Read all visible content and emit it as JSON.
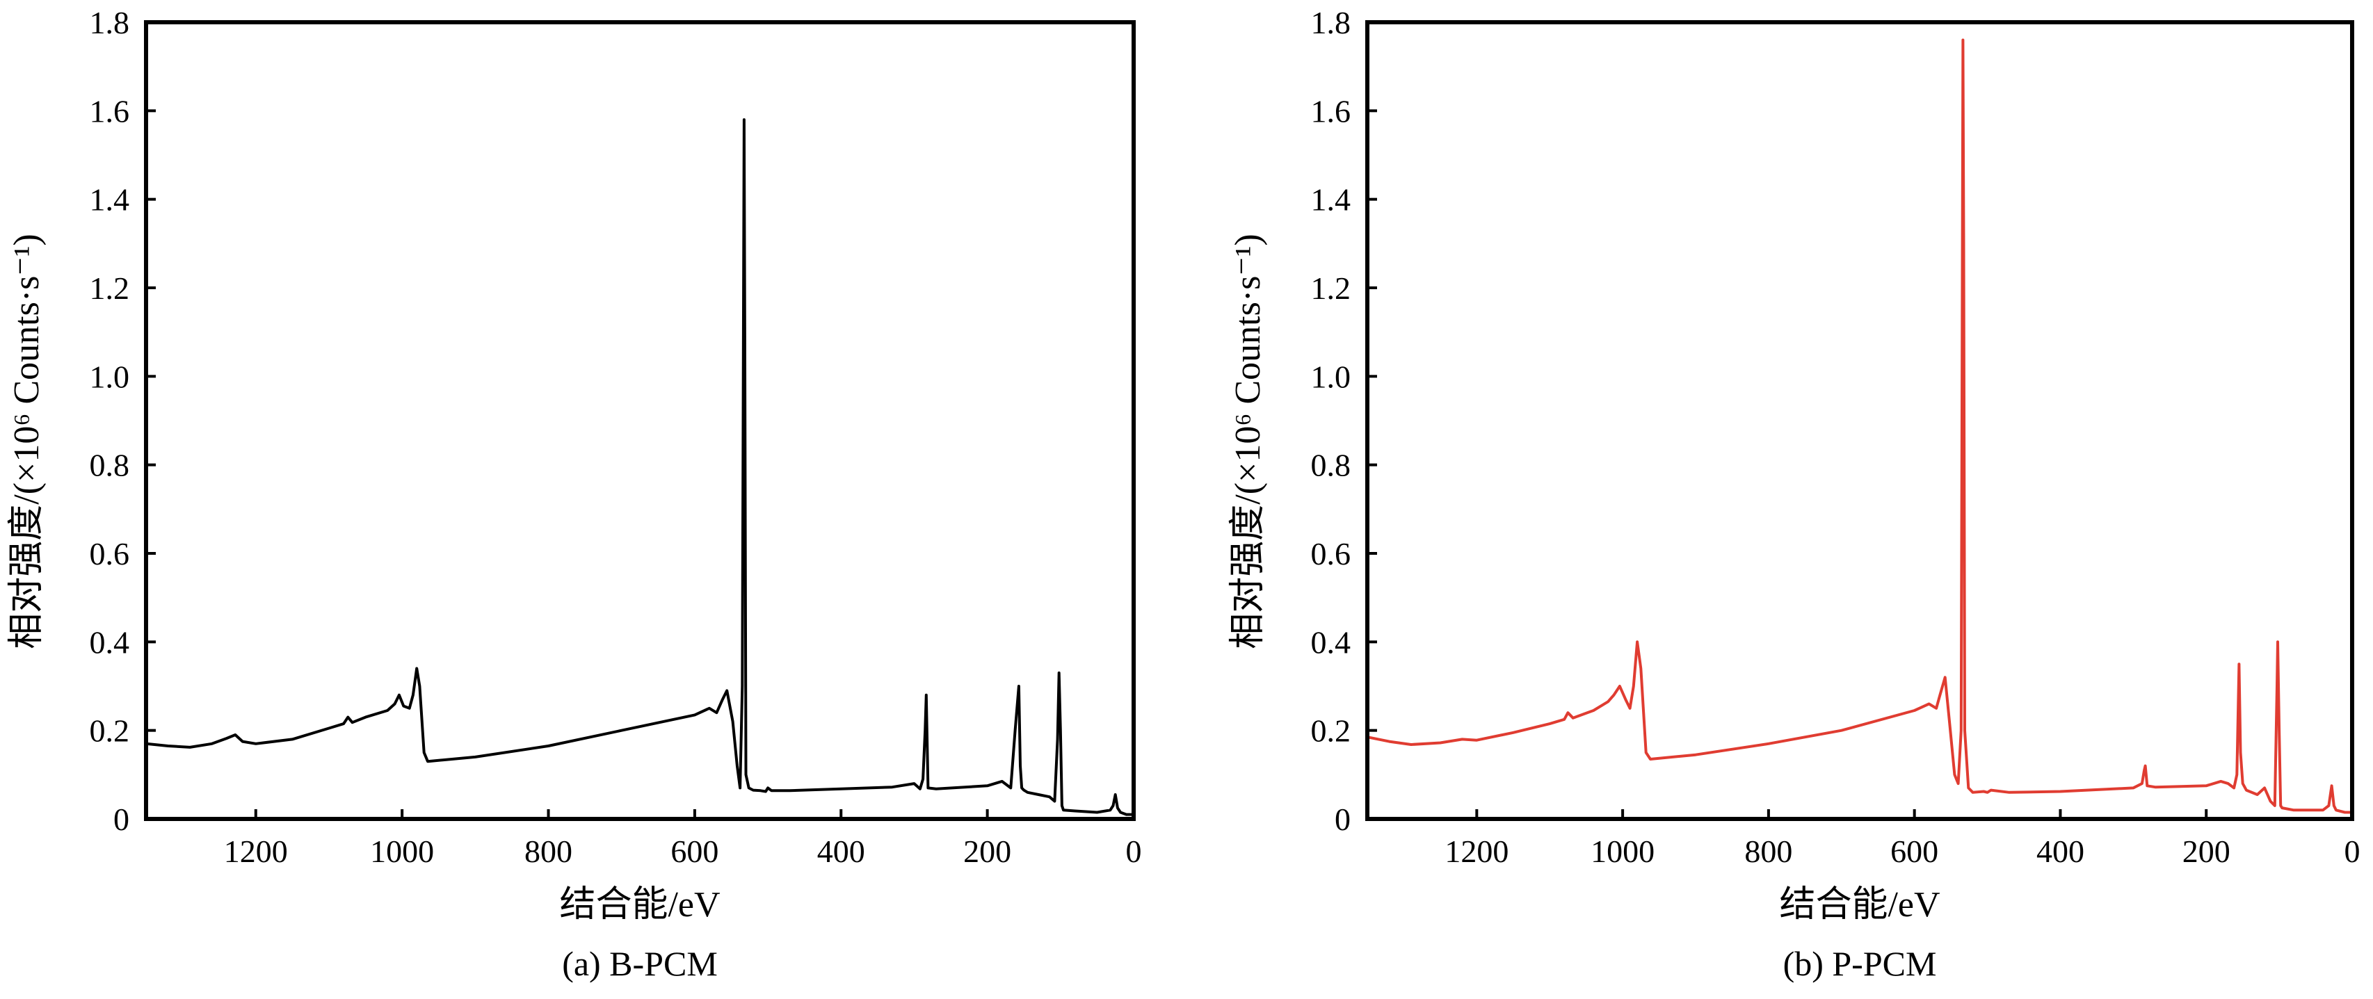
{
  "chart_data": [
    {
      "type": "line",
      "caption": "(a) B-PCM",
      "xlabel": "结合能/eV",
      "ylabel": "相对强度/(×10⁶ Counts·s⁻¹)",
      "xlim": [
        1350,
        0
      ],
      "ylim": [
        0,
        1.8
      ],
      "x_reversed": true,
      "xticks": [
        1200,
        1000,
        800,
        600,
        400,
        200,
        0
      ],
      "yticks": [
        0,
        0.2,
        0.4,
        0.6,
        0.8,
        1.0,
        1.2,
        1.4,
        1.6,
        1.8
      ],
      "grid": false,
      "color": "#000000",
      "series": [
        {
          "x": [
            1350,
            1320,
            1290,
            1260,
            1240,
            1228,
            1218,
            1200,
            1150,
            1100,
            1080,
            1074,
            1068,
            1050,
            1020,
            1010,
            1004,
            998,
            990,
            985,
            980,
            976,
            970,
            965,
            900,
            800,
            700,
            600,
            580,
            570,
            562,
            556,
            548,
            542,
            538,
            535,
            532.5,
            531.5,
            530,
            526,
            520,
            510,
            503,
            500,
            495,
            470,
            400,
            330,
            300,
            292,
            288,
            285,
            283.5,
            281,
            270,
            200,
            180,
            168,
            162,
            157,
            155,
            153,
            150,
            145,
            130,
            115,
            108,
            104,
            102,
            100,
            98,
            96,
            80,
            50,
            32,
            28,
            25,
            22,
            18,
            10,
            0
          ],
          "y": [
            0.17,
            0.165,
            0.162,
            0.17,
            0.182,
            0.19,
            0.175,
            0.17,
            0.18,
            0.205,
            0.215,
            0.23,
            0.218,
            0.23,
            0.245,
            0.26,
            0.28,
            0.255,
            0.25,
            0.28,
            0.34,
            0.3,
            0.15,
            0.13,
            0.14,
            0.165,
            0.2,
            0.235,
            0.25,
            0.24,
            0.27,
            0.29,
            0.22,
            0.12,
            0.07,
            0.3,
            1.58,
            1.1,
            0.1,
            0.07,
            0.065,
            0.064,
            0.062,
            0.07,
            0.064,
            0.064,
            0.068,
            0.072,
            0.08,
            0.068,
            0.09,
            0.2,
            0.28,
            0.07,
            0.068,
            0.075,
            0.085,
            0.07,
            0.2,
            0.3,
            0.12,
            0.07,
            0.065,
            0.06,
            0.055,
            0.05,
            0.04,
            0.18,
            0.33,
            0.2,
            0.03,
            0.02,
            0.018,
            0.015,
            0.02,
            0.03,
            0.055,
            0.025,
            0.015,
            0.01,
            0.01
          ]
        }
      ]
    },
    {
      "type": "line",
      "caption": "(b) P-PCM",
      "xlabel": "结合能/eV",
      "ylabel": "相对强度/(×10⁶ Counts·s⁻¹)",
      "xlim": [
        1350,
        0
      ],
      "ylim": [
        0,
        1.8
      ],
      "x_reversed": true,
      "xticks": [
        1200,
        1000,
        800,
        600,
        400,
        200,
        0
      ],
      "yticks": [
        0,
        0.2,
        0.4,
        0.6,
        0.8,
        1.0,
        1.2,
        1.4,
        1.6,
        1.8
      ],
      "grid": false,
      "color": "#e03c31",
      "series": [
        {
          "x": [
            1350,
            1320,
            1290,
            1250,
            1220,
            1200,
            1150,
            1100,
            1080,
            1075,
            1068,
            1040,
            1020,
            1012,
            1004,
            996,
            990,
            985,
            980,
            975,
            968,
            962,
            900,
            800,
            700,
            600,
            580,
            570,
            565,
            558,
            552,
            545,
            540,
            536,
            533.5,
            532.5,
            531,
            526,
            520,
            505,
            500,
            495,
            470,
            400,
            300,
            288,
            285,
            283.5,
            281,
            270,
            200,
            180,
            170,
            162,
            158,
            155,
            153,
            150,
            145,
            130,
            120,
            112,
            106,
            103,
            102,
            100,
            98,
            96,
            80,
            40,
            32,
            28,
            25,
            22,
            10,
            0
          ],
          "y": [
            0.185,
            0.175,
            0.168,
            0.172,
            0.18,
            0.178,
            0.195,
            0.215,
            0.225,
            0.24,
            0.228,
            0.245,
            0.265,
            0.28,
            0.3,
            0.27,
            0.25,
            0.3,
            0.4,
            0.34,
            0.15,
            0.135,
            0.145,
            0.17,
            0.2,
            0.245,
            0.26,
            0.25,
            0.28,
            0.32,
            0.22,
            0.1,
            0.08,
            0.2,
            1.76,
            1.3,
            0.2,
            0.07,
            0.06,
            0.062,
            0.06,
            0.065,
            0.06,
            0.062,
            0.07,
            0.08,
            0.11,
            0.12,
            0.075,
            0.072,
            0.075,
            0.085,
            0.08,
            0.07,
            0.1,
            0.35,
            0.15,
            0.08,
            0.065,
            0.055,
            0.07,
            0.04,
            0.03,
            0.3,
            0.4,
            0.2,
            0.03,
            0.025,
            0.02,
            0.02,
            0.03,
            0.075,
            0.03,
            0.02,
            0.015,
            0.015
          ]
        }
      ]
    }
  ]
}
